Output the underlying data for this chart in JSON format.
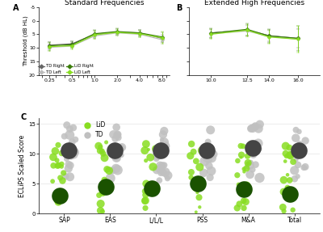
{
  "panel_A": {
    "title": "Standard Frequencies",
    "ylabel": "Threshold (dB HL)",
    "x_ticks": [
      0.25,
      0.5,
      1.0,
      2.0,
      4.0,
      8.0
    ],
    "x_tick_labels": [
      "0.25",
      "0.5",
      "1.0",
      "2.0",
      "4.0",
      "8.0"
    ],
    "ylim": [
      -5,
      20
    ],
    "yticks": [
      -5,
      0,
      5,
      10,
      15,
      20
    ],
    "ytick_labels": [
      "-5",
      "0",
      "5",
      "10",
      "15",
      "20"
    ],
    "lines": {
      "TD_Right": {
        "x": [
          0.25,
          0.5,
          1.0,
          2.0,
          4.0,
          8.0
        ],
        "y": [
          9.0,
          8.5,
          5.0,
          4.2,
          4.5,
          6.5
        ],
        "yerr": [
          1.3,
          1.0,
          1.2,
          1.0,
          1.0,
          1.3
        ],
        "color": "#666666"
      },
      "TD_Left": {
        "x": [
          0.25,
          0.5,
          1.0,
          2.0,
          4.0,
          8.0
        ],
        "y": [
          9.8,
          9.3,
          5.6,
          4.5,
          5.0,
          7.0
        ],
        "yerr": [
          1.3,
          1.0,
          1.2,
          1.0,
          1.0,
          1.3
        ],
        "color": "#bbbbbb"
      },
      "LiD_Right": {
        "x": [
          0.25,
          0.5,
          1.0,
          2.0,
          4.0,
          8.0
        ],
        "y": [
          9.2,
          8.8,
          4.8,
          4.0,
          4.5,
          6.0
        ],
        "yerr": [
          1.5,
          1.2,
          1.5,
          1.2,
          1.2,
          1.8
        ],
        "color": "#3a7d0a"
      },
      "LiD_Left": {
        "x": [
          0.25,
          0.5,
          1.0,
          2.0,
          4.0,
          8.0
        ],
        "y": [
          9.5,
          9.2,
          5.2,
          4.3,
          4.8,
          6.3
        ],
        "yerr": [
          1.5,
          1.2,
          1.5,
          1.2,
          1.2,
          2.2
        ],
        "color": "#88dd22"
      }
    },
    "legend_order": [
      "TD_Right",
      "TD_Left",
      "LiD_Right",
      "LiD_Left"
    ],
    "legend_labels": [
      "TD Right",
      "TD Left",
      "LiD Right",
      "LiD Left"
    ]
  },
  "panel_B": {
    "title": "Extended High Frequencies",
    "x_ticks": [
      10.0,
      12.5,
      14.0,
      16.0
    ],
    "x_tick_labels": [
      "10.0",
      "12.5",
      "14.0",
      "16.0"
    ],
    "ylim": [
      -5,
      20
    ],
    "lines": {
      "TD_Right": {
        "x": [
          10.0,
          12.5,
          14.0,
          16.0
        ],
        "y": [
          4.5,
          3.5,
          5.5,
          6.5
        ],
        "yerr": [
          1.5,
          2.0,
          2.0,
          3.5
        ],
        "color": "#666666"
      },
      "TD_Left": {
        "x": [
          10.0,
          12.5,
          14.0,
          16.0
        ],
        "y": [
          4.8,
          3.8,
          5.8,
          6.8
        ],
        "yerr": [
          1.5,
          2.0,
          2.0,
          4.0
        ],
        "color": "#bbbbbb"
      },
      "LiD_Right": {
        "x": [
          10.0,
          12.5,
          14.0,
          16.0
        ],
        "y": [
          4.6,
          3.2,
          5.6,
          6.5
        ],
        "yerr": [
          1.8,
          2.3,
          2.5,
          4.5
        ],
        "color": "#3a7d0a"
      },
      "LiD_Left": {
        "x": [
          10.0,
          12.5,
          14.0,
          16.0
        ],
        "y": [
          5.0,
          3.5,
          6.0,
          6.8
        ],
        "yerr": [
          1.8,
          2.3,
          2.5,
          5.0
        ],
        "color": "#88dd22"
      }
    }
  },
  "panel_C": {
    "ylabel": "ECLiPS Scaled Score",
    "ylim": [
      0,
      16
    ],
    "yticks": [
      0,
      5,
      10,
      15
    ],
    "categories": [
      "SAP",
      "EAS",
      "L/L/L",
      "PSS",
      "M&A",
      "Total"
    ],
    "TD_mean": [
      10.5,
      10.5,
      10.5,
      10.5,
      11.0,
      10.5
    ],
    "LiD_mean": [
      3.0,
      4.5,
      4.2,
      5.0,
      4.0,
      3.2
    ],
    "TD_color": "#c0c0c0",
    "TD_mean_color": "#444444",
    "LiD_color": "#88dd22",
    "LiD_mean_color": "#1a5200"
  },
  "bg_color": "#ffffff",
  "line_order": [
    "TD_Right",
    "TD_Left",
    "LiD_Right",
    "LiD_Left"
  ]
}
